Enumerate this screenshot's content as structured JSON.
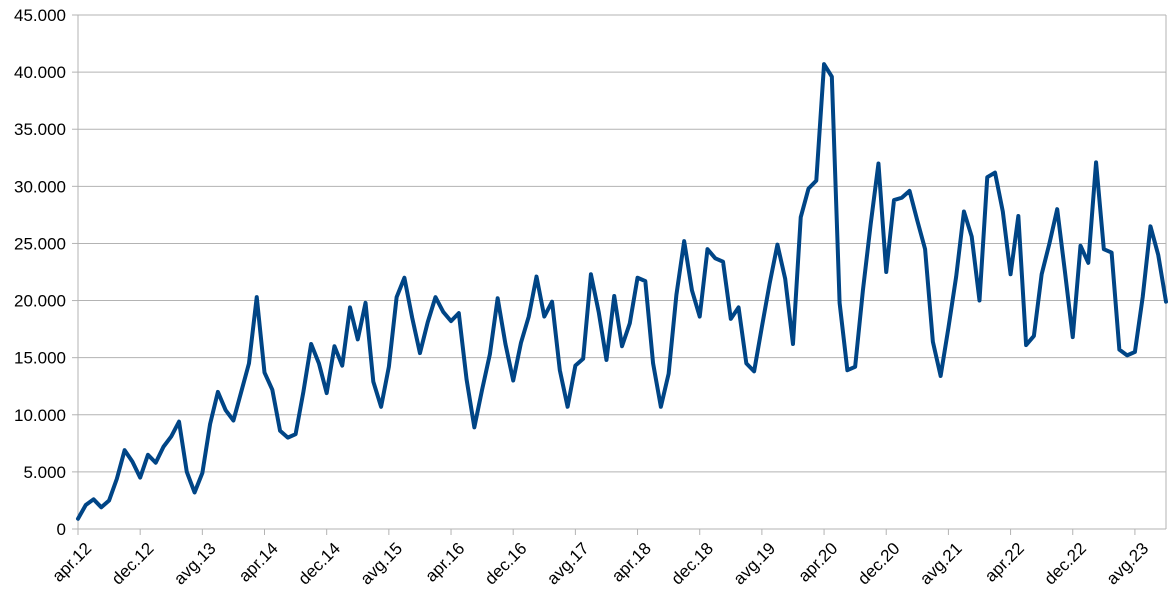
{
  "chart_data": {
    "type": "line",
    "title": "",
    "xlabel": "",
    "ylabel": "",
    "ylim": [
      0,
      45000
    ],
    "yticks": [
      0,
      5000,
      10000,
      15000,
      20000,
      25000,
      30000,
      35000,
      40000,
      45000
    ],
    "ytick_labels": [
      "0",
      "5.000",
      "10.000",
      "15.000",
      "20.000",
      "25.000",
      "30.000",
      "35.000",
      "40.000",
      "45.000"
    ],
    "xtick_labels": [
      "apr.12",
      "dec.12",
      "avg.13",
      "apr.14",
      "dec.14",
      "avg.15",
      "apr.16",
      "dec.16",
      "avg.17",
      "apr.18",
      "dec.18",
      "avg.19",
      "apr.20",
      "dec.20",
      "avg.21",
      "apr.22",
      "dec.22",
      "avg.23"
    ],
    "xtick_every": 8,
    "grid": true,
    "legend": "none",
    "line_color": "#004586",
    "series": [
      {
        "values": [
          900,
          2100,
          2600,
          1900,
          2500,
          4400,
          6900,
          5900,
          4500,
          6500,
          5800,
          7200,
          8100,
          9400,
          5000,
          3200,
          4900,
          9200,
          12000,
          10400,
          9500,
          12000,
          14500,
          20300,
          13700,
          12200,
          8600,
          8000,
          8300,
          12000,
          16200,
          14500,
          11900,
          16000,
          14300,
          19400,
          16600,
          19800,
          12900,
          10700,
          14200,
          20300,
          22000,
          18500,
          15400,
          18100,
          20300,
          19000,
          18200,
          18900,
          13100,
          8900,
          12200,
          15300,
          20200,
          16200,
          13000,
          16300,
          18600,
          22100,
          18600,
          19900,
          13900,
          10700,
          14300,
          14900,
          22300,
          19000,
          14800,
          20400,
          16000,
          18000,
          22000,
          21700,
          14500,
          10700,
          13600,
          20500,
          25200,
          20900,
          18600,
          24500,
          23700,
          23400,
          18400,
          19400,
          14500,
          13800,
          17700,
          21500,
          24900,
          21900,
          16200,
          27300,
          29800,
          30500,
          40700,
          39600,
          19800,
          13900,
          14200,
          20900,
          26700,
          32000,
          22500,
          28800,
          29000,
          29600,
          27000,
          24500,
          16400,
          13400,
          17600,
          22100,
          27800,
          25600,
          20000,
          30800,
          31200,
          27800,
          22300,
          27400,
          16100,
          16900,
          22300,
          25000,
          28000,
          22500,
          16800,
          24800,
          23300,
          32100,
          24500,
          24200,
          15700,
          15200,
          15500,
          20300,
          26500,
          24000,
          19900
        ]
      }
    ]
  }
}
